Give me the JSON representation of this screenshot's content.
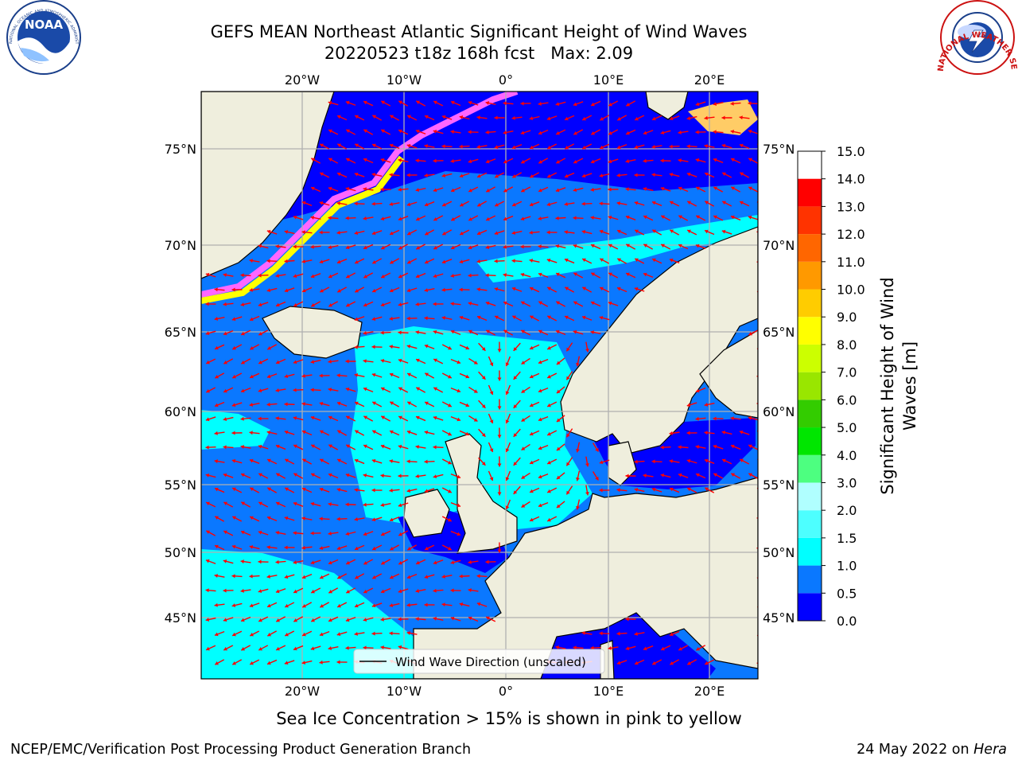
{
  "title": {
    "line1": "GEFS MEAN Northeast Atlantic Significant Height of Wind Waves",
    "line2": "20220523 t18z 168h fcst   Max: 2.09"
  },
  "axes": {
    "lon_ticks": [
      "20°W",
      "10°W",
      "0°",
      "10°E",
      "20°E"
    ],
    "lat_ticks": [
      "75°N",
      "70°N",
      "65°N",
      "60°N",
      "55°N",
      "50°N",
      "45°N"
    ]
  },
  "legend": {
    "label": "Wind Wave Direction (unscaled)"
  },
  "colorbar": {
    "label": "Significant Height of Wind Waves [m]",
    "ticks": [
      "0.0",
      "0.5",
      "1.0",
      "1.5",
      "2.0",
      "3.0",
      "4.0",
      "5.0",
      "6.0",
      "7.0",
      "8.0",
      "9.0",
      "10.0",
      "11.0",
      "12.0",
      "13.0",
      "14.0",
      "15.0"
    ],
    "colors": [
      "#0000ff",
      "#0a78ff",
      "#00ffff",
      "#4dffff",
      "#b0ffff",
      "#4dff80",
      "#00e600",
      "#33cc00",
      "#99e600",
      "#ccff00",
      "#ffff00",
      "#ffcc00",
      "#ff9900",
      "#ff6600",
      "#ff3300",
      "#ff0000"
    ]
  },
  "ice_note": "Sea Ice Concentration > 15% is shown in pink to yellow",
  "footer": {
    "left": "NCEP/EMC/Verification Post Processing Product Generation Branch",
    "right_date": "24 May 2022 on ",
    "right_host": "Hera"
  },
  "logos": {
    "noaa_text": "NOAA",
    "noaa_ring": "NATIONAL OCEANIC AND ATMOSPHERIC ADMINISTRATION · U.S. DEPARTMENT OF COMMERCE",
    "nws_ring": "NATIONAL WEATHER SERVICE"
  },
  "map": {
    "land_color": "#efeedd",
    "ocean_low": "#0000ff",
    "ocean_mid": "#0a78ff",
    "ocean_high": "#00ffff",
    "ice_colors": [
      "#ff66ff",
      "#ffcc66",
      "#ffff00"
    ],
    "arrow_color": "#ff0000",
    "grid": true
  }
}
